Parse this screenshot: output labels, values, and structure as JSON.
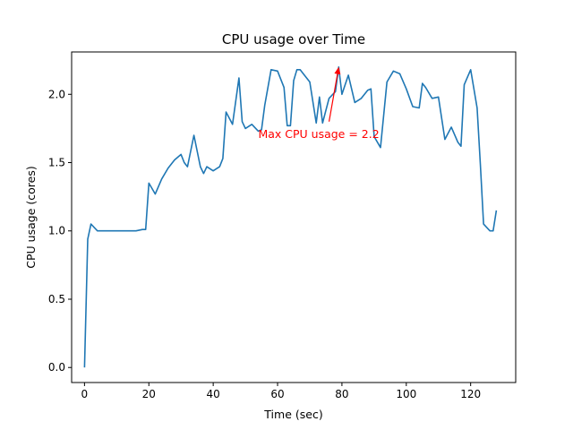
{
  "chart_data": {
    "type": "line",
    "title": "CPU usage over Time",
    "xlabel": "Time (sec)",
    "ylabel": "CPU usage (cores)",
    "xlim": [
      -4,
      134
    ],
    "ylim": [
      -0.11,
      2.31
    ],
    "xticks": [
      0,
      20,
      40,
      60,
      80,
      100,
      120
    ],
    "xtick_labels": [
      "0",
      "20",
      "40",
      "60",
      "80",
      "100",
      "120"
    ],
    "yticks": [
      0.0,
      0.5,
      1.0,
      1.5,
      2.0
    ],
    "ytick_labels": [
      "0.0",
      "0.5",
      "1.0",
      "1.5",
      "2.0"
    ],
    "grid": false,
    "line_color": "#1f77b4",
    "series": [
      {
        "x": [
          0,
          1,
          2,
          4,
          6,
          8,
          10,
          12,
          14,
          16,
          18,
          19,
          20,
          22,
          24,
          26,
          28,
          30,
          31,
          32,
          34,
          36,
          37,
          38,
          40,
          42,
          43,
          44,
          46,
          48,
          49,
          50,
          52,
          54,
          55,
          56,
          58,
          60,
          62,
          63,
          64,
          65,
          66,
          67,
          68,
          70,
          72,
          73,
          74,
          76,
          78,
          79,
          80,
          82,
          84,
          86,
          88,
          89,
          90,
          92,
          94,
          96,
          98,
          100,
          102,
          104,
          105,
          106,
          108,
          110,
          112,
          114,
          116,
          117,
          118,
          120,
          122,
          123,
          124,
          126,
          127,
          128
        ],
        "y": [
          0.0,
          0.94,
          1.05,
          1.0,
          1.0,
          1.0,
          1.0,
          1.0,
          1.0,
          1.0,
          1.01,
          1.01,
          1.35,
          1.27,
          1.38,
          1.46,
          1.52,
          1.56,
          1.5,
          1.47,
          1.7,
          1.47,
          1.42,
          1.47,
          1.44,
          1.47,
          1.53,
          1.87,
          1.78,
          2.12,
          1.8,
          1.75,
          1.78,
          1.73,
          1.74,
          1.92,
          2.18,
          2.17,
          2.05,
          1.77,
          1.77,
          2.1,
          2.18,
          2.18,
          2.15,
          2.09,
          1.79,
          1.98,
          1.79,
          1.97,
          2.02,
          2.2,
          2.0,
          2.14,
          1.94,
          1.97,
          2.03,
          2.04,
          1.69,
          1.61,
          2.09,
          2.17,
          2.15,
          2.04,
          1.91,
          1.9,
          2.08,
          2.05,
          1.97,
          1.98,
          1.67,
          1.76,
          1.65,
          1.62,
          2.07,
          2.18,
          1.9,
          1.49,
          1.05,
          1.0,
          1.0,
          1.15
        ]
      }
    ],
    "annotation": {
      "text": "Max CPU usage = 2.2",
      "color": "#ff0000",
      "point": [
        79,
        2.2
      ],
      "text_anchor_point": [
        54,
        1.68
      ],
      "arrow_tail": [
        76,
        1.8
      ]
    }
  }
}
